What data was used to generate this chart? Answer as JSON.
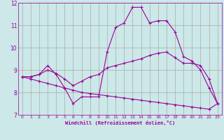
{
  "xlabel": "Windchill (Refroidissement éolien,°C)",
  "background_color": "#cce8e8",
  "grid_color": "#aaaaaa",
  "line_color": "#990099",
  "xlim": [
    -0.5,
    23.5
  ],
  "ylim": [
    7,
    12
  ],
  "yticks": [
    7,
    8,
    9,
    10,
    11,
    12
  ],
  "xticks": [
    0,
    1,
    2,
    3,
    4,
    5,
    6,
    7,
    8,
    9,
    10,
    11,
    12,
    13,
    14,
    15,
    16,
    17,
    18,
    19,
    20,
    21,
    22,
    23
  ],
  "series1": {
    "x": [
      0,
      1,
      2,
      3,
      4,
      5,
      6,
      7,
      8,
      9,
      10,
      11,
      12,
      13,
      14,
      15,
      16,
      17,
      18,
      19,
      20,
      21,
      22,
      23
    ],
    "y": [
      8.7,
      8.7,
      8.8,
      9.2,
      8.8,
      8.2,
      7.5,
      7.8,
      7.8,
      7.8,
      9.8,
      10.9,
      11.1,
      11.8,
      11.8,
      11.1,
      11.2,
      11.2,
      10.7,
      9.6,
      9.4,
      9.0,
      8.2,
      7.5
    ]
  },
  "series2": {
    "x": [
      0,
      1,
      2,
      3,
      4,
      5,
      6,
      7,
      8,
      9,
      10,
      11,
      12,
      13,
      14,
      15,
      16,
      17,
      18,
      19,
      20,
      21,
      22,
      23
    ],
    "y": [
      8.7,
      8.7,
      8.8,
      9.0,
      8.85,
      8.6,
      8.3,
      8.5,
      8.7,
      8.8,
      9.1,
      9.2,
      9.3,
      9.4,
      9.5,
      9.65,
      9.75,
      9.8,
      9.55,
      9.3,
      9.3,
      9.2,
      8.6,
      7.5
    ]
  },
  "series3": {
    "x": [
      0,
      1,
      2,
      3,
      4,
      5,
      6,
      7,
      8,
      9,
      10,
      11,
      12,
      13,
      14,
      15,
      16,
      17,
      18,
      19,
      20,
      21,
      22,
      23
    ],
    "y": [
      8.7,
      8.6,
      8.5,
      8.4,
      8.3,
      8.2,
      8.1,
      8.0,
      7.95,
      7.9,
      7.85,
      7.8,
      7.75,
      7.7,
      7.65,
      7.6,
      7.55,
      7.5,
      7.45,
      7.4,
      7.35,
      7.3,
      7.25,
      7.5
    ]
  }
}
